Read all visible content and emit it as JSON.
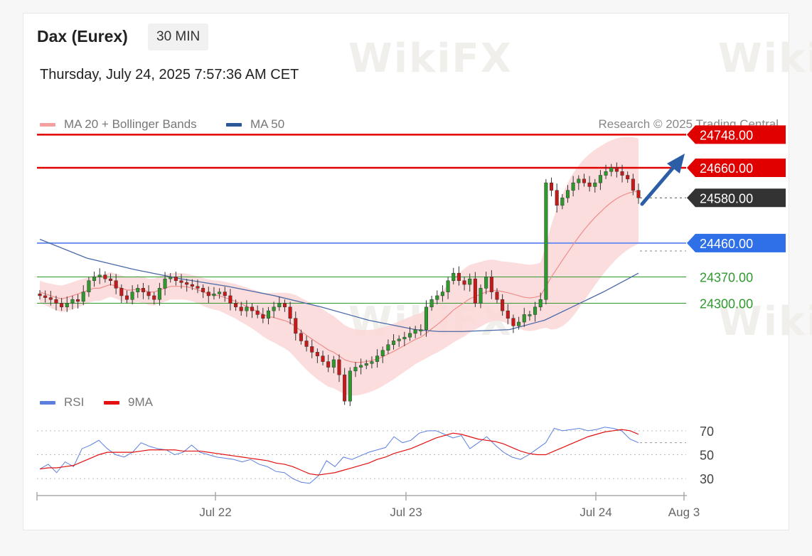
{
  "header": {
    "title": "Dax (Eurex)",
    "timeframe": "30 MIN",
    "datetime": "Thursday, July 24, 2025 7:57:36 AM CET"
  },
  "legend_price": [
    {
      "label": "MA 20 + Bollinger Bands",
      "color": "#f4a0a0"
    },
    {
      "label": "MA 50",
      "color": "#2b5797"
    }
  ],
  "legend_rsi": [
    {
      "label": "RSI",
      "color": "#5b7fde"
    },
    {
      "label": "9MA",
      "color": "#e21010"
    }
  ],
  "copyright": "Research © 2025 Trading Central",
  "watermark": "WikiFX",
  "colors": {
    "resistance": "#e00000",
    "pivot_line": "#6f8ff0",
    "support": "#2e9a2e",
    "candle_up": "#2e9a2e",
    "candle_down": "#c81818",
    "band": "#fbd7d7",
    "arrow": "#2b5ea7",
    "current_tag": "#333333"
  },
  "chart_data": [
    {
      "type": "candlestick",
      "timeframe": "30 MIN",
      "x_ticks": [
        "Jul 22",
        "Jul 23",
        "Jul 24",
        "Aug 3"
      ],
      "y_range": [
        24080,
        24760
      ],
      "levels": [
        {
          "value": 24748.0,
          "label": "24748.00",
          "kind": "resistance"
        },
        {
          "value": 24660.0,
          "label": "24660.00",
          "kind": "resistance"
        },
        {
          "value": 24580.0,
          "label": "24580.00",
          "kind": "current"
        },
        {
          "value": 24460.0,
          "label": "24460.00",
          "kind": "pivot"
        },
        {
          "value": 24370.0,
          "label": "24370.00",
          "kind": "support"
        },
        {
          "value": 24300.0,
          "label": "24300.00",
          "kind": "support"
        }
      ],
      "closes": [
        24320,
        24315,
        24310,
        24300,
        24290,
        24300,
        24310,
        24305,
        24330,
        24360,
        24370,
        24375,
        24365,
        24360,
        24340,
        24320,
        24310,
        24330,
        24340,
        24330,
        24320,
        24310,
        24340,
        24365,
        24370,
        24360,
        24355,
        24350,
        24345,
        24340,
        24330,
        24320,
        24325,
        24330,
        24320,
        24300,
        24290,
        24280,
        24290,
        24280,
        24270,
        24260,
        24280,
        24290,
        24300,
        24290,
        24260,
        24220,
        24200,
        24185,
        24170,
        24160,
        24145,
        24130,
        24150,
        24110,
        24040,
        24120,
        24130,
        24135,
        24140,
        24145,
        24160,
        24175,
        24190,
        24200,
        24205,
        24210,
        24220,
        24230,
        24230,
        24290,
        24310,
        24320,
        24330,
        24360,
        24380,
        24360,
        24350,
        24365,
        24300,
        24340,
        24370,
        24330,
        24310,
        24280,
        24260,
        24240,
        24250,
        24270,
        24270,
        24290,
        24310,
        24620,
        24600,
        24560,
        24580,
        24600,
        24620,
        24630,
        24620,
        24610,
        24620,
        24640,
        24650,
        24660,
        24650,
        24640,
        24630,
        24600,
        24580
      ],
      "ma20": [
        24330,
        24325,
        24320,
        24315,
        24312,
        24315,
        24320,
        24325,
        24330,
        24335,
        24340,
        24340,
        24345,
        24350,
        24345,
        24340,
        24335,
        24335,
        24338,
        24335,
        24330,
        24330,
        24335,
        24340,
        24345,
        24345,
        24345,
        24344,
        24340,
        24336,
        24330,
        24325,
        24322,
        24320,
        24315,
        24310,
        24305,
        24298,
        24292,
        24285,
        24278,
        24270,
        24265,
        24262,
        24258,
        24254,
        24248,
        24238,
        24226,
        24215,
        24205,
        24195,
        24186,
        24176,
        24170,
        24160,
        24150,
        24145,
        24143,
        24143,
        24145,
        24148,
        24152,
        24158,
        24165,
        24172,
        24180,
        24188,
        24196,
        24204,
        24210,
        24220,
        24232,
        24243,
        24255,
        24268,
        24282,
        24292,
        24302,
        24312,
        24318,
        24324,
        24330,
        24334,
        24334,
        24331,
        24328,
        24324,
        24320,
        24316,
        24314,
        24316,
        24320,
        24345,
        24370,
        24392,
        24414,
        24435,
        24456,
        24476,
        24495,
        24512,
        24528,
        24542,
        24556,
        24568,
        24578,
        24586,
        24592,
        24596,
        24598
      ],
      "bb_width": [
        30,
        30,
        32,
        34,
        35,
        36,
        36,
        36,
        35,
        34,
        34,
        34,
        33,
        33,
        33,
        34,
        35,
        35,
        35,
        35,
        35,
        36,
        36,
        36,
        35,
        35,
        35,
        35,
        35,
        36,
        37,
        38,
        39,
        40,
        42,
        44,
        46,
        48,
        50,
        52,
        55,
        58,
        62,
        66,
        70,
        74,
        78,
        84,
        88,
        92,
        95,
        97,
        98,
        98,
        96,
        94,
        92,
        90,
        88,
        86,
        84,
        82,
        80,
        78,
        76,
        74,
        72,
        70,
        68,
        66,
        64,
        66,
        70,
        74,
        78,
        82,
        86,
        88,
        90,
        90,
        88,
        86,
        84,
        82,
        80,
        80,
        82,
        84,
        86,
        88,
        88,
        88,
        88,
        110,
        140,
        160,
        175,
        185,
        190,
        190,
        188,
        185,
        180,
        175,
        170,
        165,
        160,
        155,
        150,
        145,
        140
      ],
      "ma50_line": [
        [
          0,
          24470
        ],
        [
          20,
          24420
        ],
        [
          40,
          24390
        ],
        [
          60,
          24365
        ],
        [
          80,
          24345
        ],
        [
          100,
          24320
        ],
        [
          120,
          24290
        ],
        [
          140,
          24255
        ],
        [
          160,
          24230
        ],
        [
          170,
          24225
        ],
        [
          180,
          24225
        ],
        [
          200,
          24230
        ],
        [
          215,
          24255
        ],
        [
          230,
          24300
        ],
        [
          240,
          24330
        ],
        [
          255,
          24380
        ]
      ],
      "rsi_y_ticks": [
        70,
        50,
        30
      ],
      "rsi_range": [
        20,
        80
      ],
      "rsi": [
        38,
        42,
        35,
        44,
        40,
        55,
        58,
        62,
        55,
        50,
        48,
        52,
        60,
        57,
        55,
        54,
        50,
        52,
        58,
        52,
        50,
        48,
        47,
        46,
        44,
        46,
        42,
        40,
        36,
        35,
        30,
        27,
        26,
        32,
        45,
        40,
        48,
        46,
        49,
        52,
        54,
        56,
        65,
        60,
        62,
        68,
        70,
        70,
        67,
        64,
        66,
        55,
        60,
        65,
        58,
        52,
        48,
        46,
        50,
        55,
        60,
        72,
        70,
        71,
        72,
        70,
        71,
        73,
        72,
        70,
        63,
        60
      ],
      "rsi_ma": [
        38,
        39,
        39,
        40,
        41,
        44,
        47,
        50,
        52,
        52,
        52,
        52,
        53,
        54,
        54,
        54,
        54,
        53,
        53,
        53,
        52,
        51,
        50,
        49,
        48,
        47,
        46,
        45,
        43,
        42,
        40,
        37,
        34,
        33,
        34,
        35,
        37,
        39,
        41,
        43,
        46,
        48,
        51,
        53,
        55,
        58,
        61,
        64,
        66,
        68,
        67,
        65,
        63,
        62,
        61,
        59,
        56,
        53,
        51,
        50,
        50,
        53,
        56,
        59,
        62,
        65,
        67,
        69,
        70,
        71,
        70,
        67
      ]
    }
  ]
}
